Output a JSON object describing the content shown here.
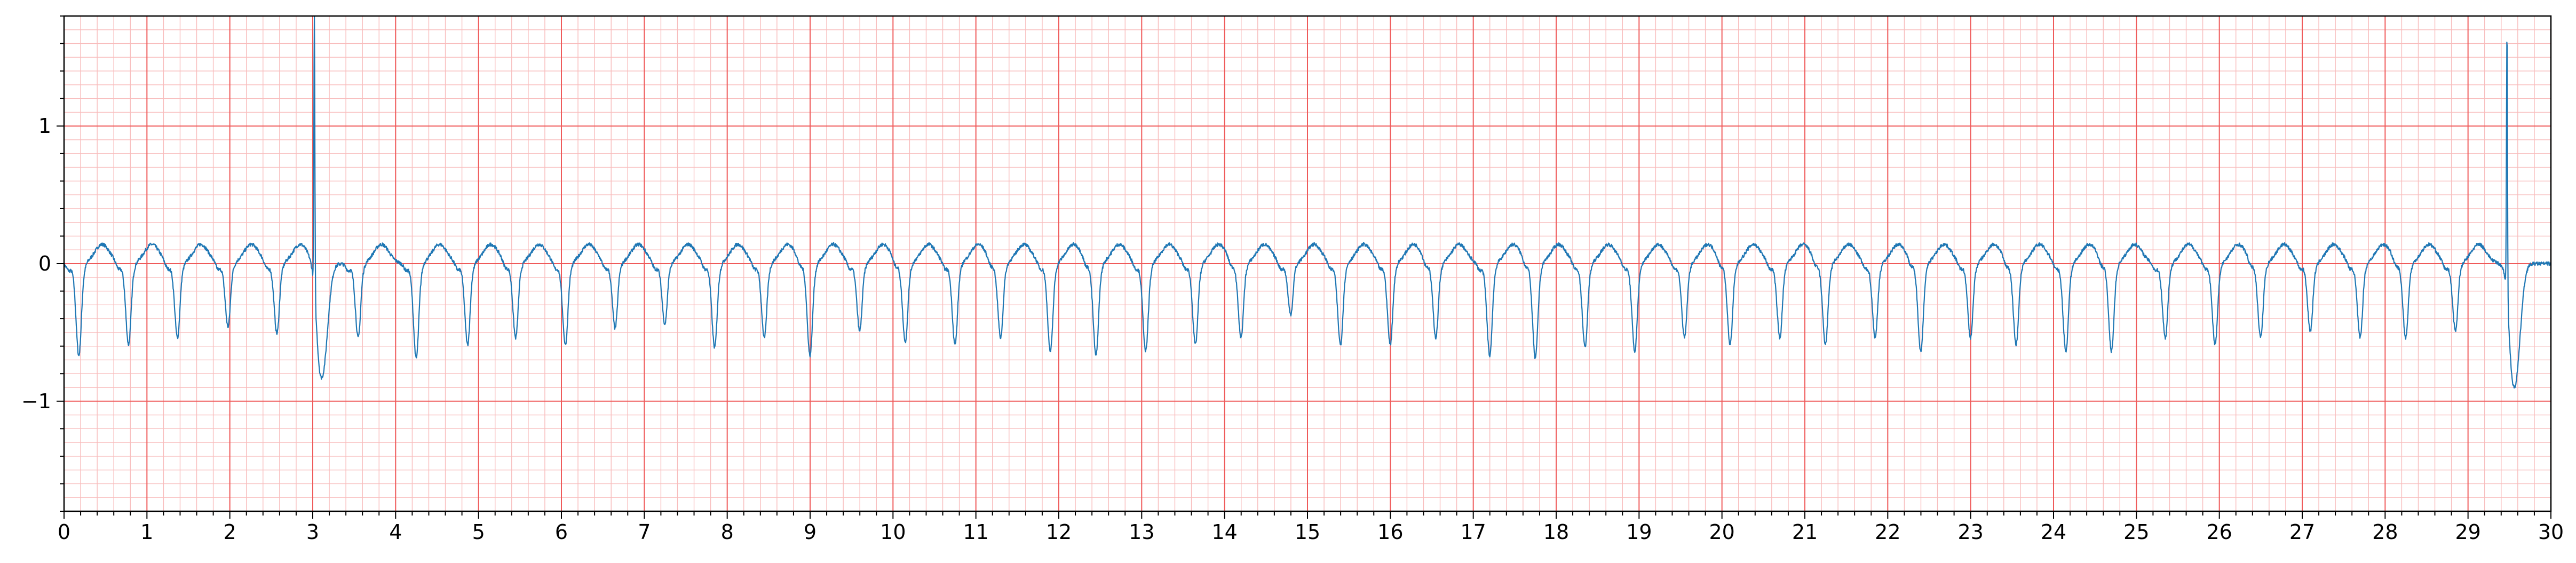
{
  "chart_data": {
    "type": "line",
    "title": "",
    "xlabel": "",
    "ylabel": "",
    "xlim": [
      0,
      30
    ],
    "ylim": [
      -1.8,
      1.8
    ],
    "x_ticks": [
      0,
      1,
      2,
      3,
      4,
      5,
      6,
      7,
      8,
      9,
      10,
      11,
      12,
      13,
      14,
      15,
      16,
      17,
      18,
      19,
      20,
      21,
      22,
      23,
      24,
      25,
      26,
      27,
      28,
      29,
      30
    ],
    "x_tick_labels": [
      "0",
      "1",
      "2",
      "3",
      "4",
      "5",
      "6",
      "7",
      "8",
      "9",
      "10",
      "11",
      "12",
      "13",
      "14",
      "15",
      "16",
      "17",
      "18",
      "19",
      "20",
      "21",
      "22",
      "23",
      "24",
      "25",
      "26",
      "27",
      "28",
      "29",
      "30"
    ],
    "y_ticks": [
      -1,
      0,
      1
    ],
    "y_tick_labels": [
      "−1",
      "0",
      "1"
    ],
    "grid": {
      "major": true,
      "minor": true,
      "major_step_x": 1,
      "minor_step_x": 0.2,
      "major_step_y": 1,
      "minor_step_y": 0.1
    },
    "colors": {
      "major_grid": "#ef5a5a",
      "minor_grid": "#f8bcbc",
      "trace": "#1f77b4",
      "axes": "#000000"
    },
    "series": [
      {
        "name": "",
        "description_free": true,
        "beat_times": [
          0.18,
          0.78,
          1.37,
          1.98,
          2.57,
          3.02,
          3.55,
          4.25,
          4.87,
          5.45,
          6.05,
          6.65,
          7.25,
          7.85,
          8.45,
          9.0,
          9.6,
          10.15,
          10.75,
          11.3,
          11.9,
          12.45,
          13.05,
          13.65,
          14.2,
          14.8,
          15.4,
          16.0,
          16.55,
          17.2,
          17.75,
          18.35,
          18.95,
          19.55,
          20.1,
          20.7,
          21.25,
          21.85,
          22.4,
          23.0,
          23.55,
          24.15,
          24.7,
          25.35,
          25.95,
          26.5,
          27.1,
          27.7,
          28.25,
          28.85,
          29.47
        ],
        "beat_depths": [
          -0.68,
          -0.6,
          -0.55,
          -0.47,
          -0.52,
          0,
          -0.55,
          -0.7,
          -0.6,
          -0.55,
          -0.6,
          -0.48,
          -0.45,
          -0.62,
          -0.55,
          -0.68,
          -0.5,
          -0.58,
          -0.6,
          -0.55,
          -0.65,
          -0.68,
          -0.65,
          -0.6,
          -0.55,
          -0.38,
          -0.6,
          -0.6,
          -0.55,
          -0.68,
          -0.7,
          -0.62,
          -0.65,
          -0.55,
          -0.6,
          -0.55,
          -0.6,
          -0.55,
          -0.65,
          -0.55,
          -0.6,
          -0.65,
          -0.65,
          -0.55,
          -0.6,
          -0.55,
          -0.5,
          -0.55,
          -0.55,
          -0.5,
          0
        ],
        "spikes": [
          {
            "x": 3.02,
            "peak": 1.8,
            "trough": -0.78
          },
          {
            "x": 29.47,
            "peak": 1.75,
            "trough": -0.85
          }
        ],
        "baseline": 0.0
      }
    ]
  }
}
